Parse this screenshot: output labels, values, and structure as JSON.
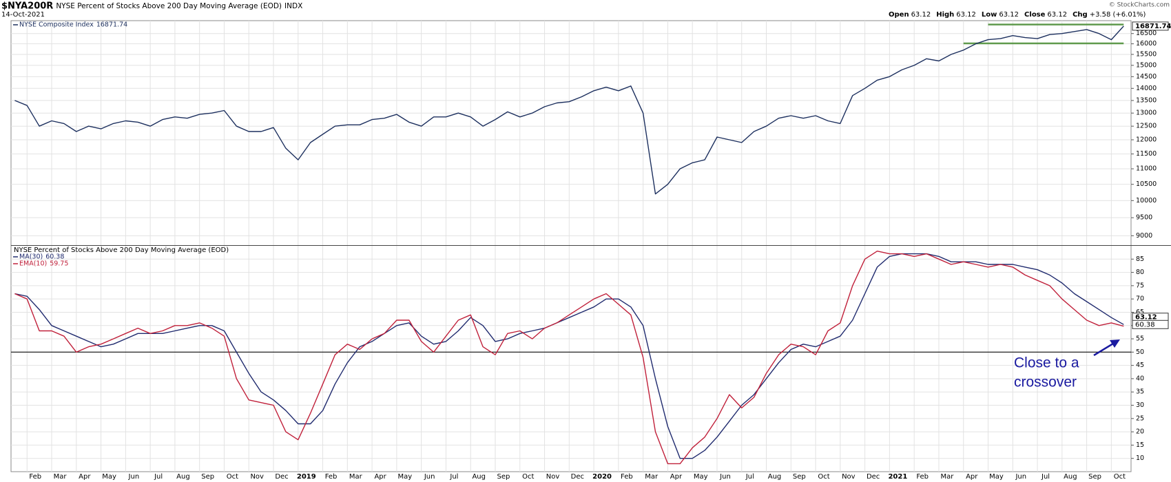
{
  "header": {
    "symbol": "$NYA200R",
    "description": "NYSE Percent of Stocks Above 200 Day Moving Average (EOD)",
    "exchange": "INDX",
    "date": "14-Oct-2021",
    "copyright": "© StockCharts.com",
    "quote": [
      {
        "label": "Open",
        "value": 63.12
      },
      {
        "label": "High",
        "value": 63.12
      },
      {
        "label": "Low",
        "value": 63.12
      },
      {
        "label": "Close",
        "value": 63.12
      }
    ],
    "change_label": "Chg",
    "change": "+3.58 (+6.01%)"
  },
  "x_labels": [
    "Feb",
    "Mar",
    "Apr",
    "May",
    "Jun",
    "Jul",
    "Aug",
    "Sep",
    "Oct",
    "Nov",
    "Dec",
    "2019",
    "Feb",
    "Mar",
    "Apr",
    "May",
    "Jun",
    "Jul",
    "Aug",
    "Sep",
    "Oct",
    "Nov",
    "Dec",
    "2020",
    "Feb",
    "Mar",
    "Apr",
    "May",
    "Jun",
    "Jul",
    "Aug",
    "Sep",
    "Oct",
    "Nov",
    "Dec",
    "2021",
    "Feb",
    "Mar",
    "Apr",
    "May",
    "Jun",
    "Jul",
    "Aug",
    "Sep",
    "Oct"
  ],
  "chart_data": [
    {
      "type": "line",
      "log_scale": true,
      "grid": true,
      "ylim": [
        8750,
        17150
      ],
      "yticks": [
        9000,
        9500,
        10000,
        10500,
        11000,
        11500,
        12000,
        12500,
        13000,
        13500,
        14000,
        14500,
        15000,
        15500,
        16000,
        16500
      ],
      "series": [
        {
          "name": "NYSE Composite Index",
          "color": "#1c2f5e",
          "values": [
            13500,
            13300,
            12500,
            12700,
            12600,
            12300,
            12500,
            12400,
            12600,
            12700,
            12650,
            12500,
            12750,
            12850,
            12800,
            12950,
            13000,
            13100,
            12500,
            12300,
            12300,
            12450,
            11700,
            11300,
            11900,
            12200,
            12500,
            12550,
            12550,
            12750,
            12800,
            12950,
            12650,
            12500,
            12850,
            12850,
            13000,
            12850,
            12500,
            12750,
            13050,
            12850,
            13000,
            13250,
            13400,
            13450,
            13650,
            13900,
            14050,
            13900,
            14100,
            13000,
            10200,
            10500,
            11000,
            11200,
            11300,
            12100,
            12000,
            11900,
            12300,
            12500,
            12800,
            12900,
            12800,
            12900,
            12700,
            12600,
            13700,
            14000,
            14350,
            14500,
            14800,
            15000,
            15300,
            15200,
            15500,
            15700,
            16000,
            16200,
            16250,
            16400,
            16300,
            16250,
            16450,
            16500,
            16600,
            16700,
            16500,
            16200,
            16871.74
          ]
        }
      ],
      "reference_lines": [
        {
          "value": 16950,
          "color": "#5f9a4c"
        },
        {
          "value": 16020,
          "color": "#5f9a4c"
        }
      ]
    },
    {
      "type": "line",
      "title": "NYSE Percent of Stocks Above 200 Day Moving Average (EOD)",
      "grid": true,
      "ylim": [
        5,
        90
      ],
      "yticks": [
        10,
        15,
        20,
        25,
        30,
        35,
        40,
        45,
        50,
        55,
        60,
        65,
        70,
        75,
        80,
        85
      ],
      "hline": 50,
      "series": [
        {
          "name": "MA(30)",
          "color": "#1f2a6e",
          "values": [
            72,
            71,
            66,
            60,
            58,
            56,
            54,
            52,
            53,
            55,
            57,
            57,
            57,
            58,
            59,
            60,
            60,
            58,
            50,
            42,
            35,
            32,
            28,
            23,
            23,
            28,
            38,
            46,
            52,
            54,
            57,
            60,
            61,
            56,
            53,
            54,
            58,
            63,
            60,
            54,
            55,
            57,
            58,
            59,
            61,
            63,
            65,
            67,
            70,
            70,
            67,
            60,
            40,
            22,
            10,
            10,
            13,
            18,
            24,
            30,
            34,
            40,
            46,
            51,
            53,
            52,
            54,
            56,
            62,
            72,
            82,
            86,
            87,
            87,
            87,
            86,
            84,
            84,
            84,
            83,
            83,
            83,
            82,
            81,
            79,
            76,
            72,
            69,
            66,
            63,
            60.38
          ]
        },
        {
          "name": "EMA(10)",
          "color": "#c0203a",
          "values": [
            72,
            70,
            58,
            58,
            56,
            50,
            52,
            53,
            55,
            57,
            59,
            57,
            58,
            60,
            60,
            61,
            59,
            56,
            40,
            32,
            31,
            30,
            20,
            17,
            27,
            38,
            49,
            53,
            51,
            55,
            57,
            62,
            62,
            54,
            50,
            56,
            62,
            64,
            52,
            49,
            57,
            58,
            55,
            59,
            61,
            64,
            67,
            70,
            72,
            68,
            64,
            48,
            20,
            8,
            8,
            14,
            18,
            25,
            34,
            29,
            33,
            42,
            49,
            53,
            52,
            49,
            58,
            61,
            75,
            85,
            88,
            87,
            87,
            86,
            87,
            85,
            83,
            84,
            83,
            82,
            83,
            82,
            79,
            77,
            75,
            70,
            66,
            62,
            60,
            61,
            59.75
          ]
        }
      ],
      "annotation": [
        "Close to a",
        "crossover"
      ],
      "annotation_color": "#1a1aa0"
    }
  ]
}
